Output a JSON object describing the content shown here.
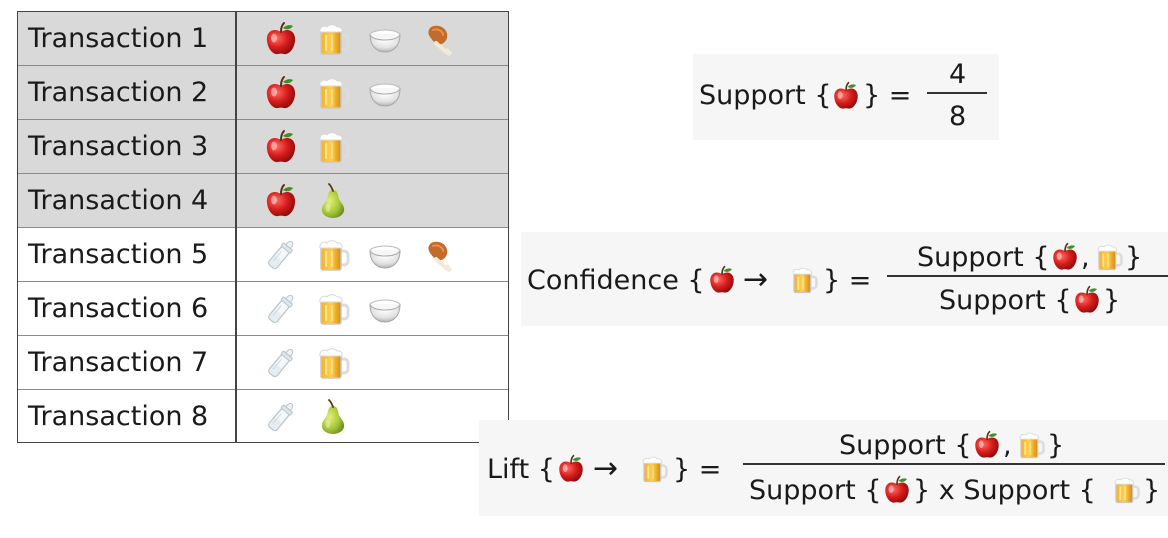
{
  "transactions": [
    {
      "label": "Transaction 1",
      "items": [
        "apple-icon",
        "beer-mug-icon",
        "rice-bowl-icon",
        "chicken-leg-icon"
      ]
    },
    {
      "label": "Transaction 2",
      "items": [
        "apple-icon",
        "beer-mug-icon",
        "rice-bowl-icon"
      ]
    },
    {
      "label": "Transaction 3",
      "items": [
        "apple-icon",
        "beer-mug-icon"
      ]
    },
    {
      "label": "Transaction 4",
      "items": [
        "apple-icon",
        "pear-icon"
      ]
    },
    {
      "label": "Transaction 5",
      "items": [
        "baby-bottle-icon",
        "beer-mug-icon",
        "rice-bowl-icon",
        "chicken-leg-icon"
      ]
    },
    {
      "label": "Transaction 6",
      "items": [
        "baby-bottle-icon",
        "beer-mug-icon",
        "rice-bowl-icon"
      ]
    },
    {
      "label": "Transaction 7",
      "items": [
        "baby-bottle-icon",
        "beer-mug-icon"
      ]
    },
    {
      "label": "Transaction 8",
      "items": [
        "baby-bottle-icon",
        "pear-icon"
      ]
    }
  ],
  "support": {
    "prefix": "Support {",
    "suffix": "} =",
    "numerator": "4",
    "denominator": "8"
  },
  "confidence": {
    "prefix": "Confidence {",
    "suffix": "} =",
    "num_prefix": "Support {",
    "num_comma": ",",
    "num_suffix": "}",
    "den_prefix": "Support {",
    "den_suffix": "}"
  },
  "lift": {
    "prefix": "Lift {",
    "suffix": "} =",
    "num_prefix": "Support {",
    "num_comma": ",",
    "num_suffix": "}",
    "den_prefix": "Support {",
    "den_mid": "} x Support {",
    "den_suffix": "}"
  },
  "arrow_glyph": "→",
  "colors": {
    "shaded_row": "#d9d9d9",
    "apple": "#d42020",
    "beer": "#e8a317",
    "pear": "#a8c83a",
    "panel": "#f6f6f6"
  }
}
